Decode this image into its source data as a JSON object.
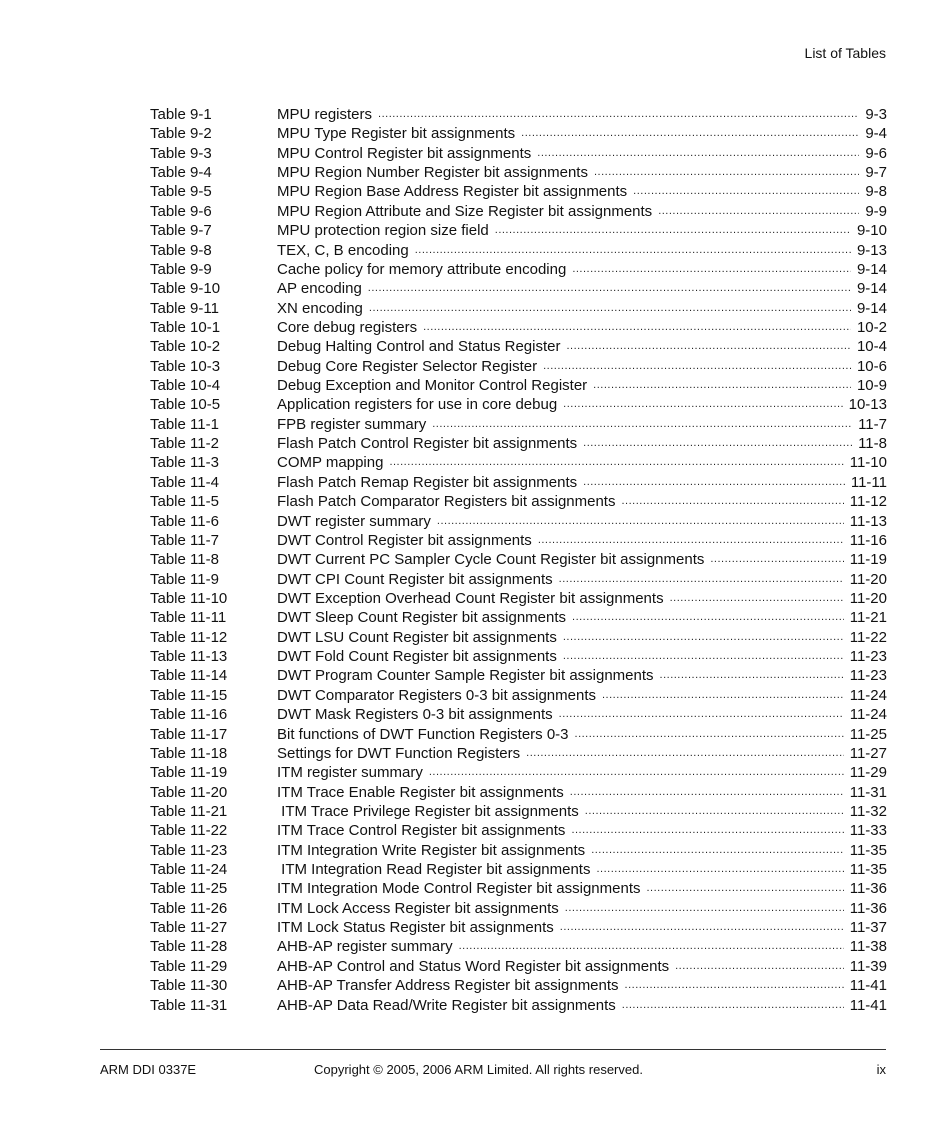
{
  "header": {
    "title": "List of Tables"
  },
  "entries": [
    [
      "Table 9-1",
      "MPU registers",
      "9-3"
    ],
    [
      "Table 9-2",
      "MPU Type Register bit assignments",
      "9-4"
    ],
    [
      "Table 9-3",
      "MPU Control Register bit assignments",
      "9-6"
    ],
    [
      "Table 9-4",
      "MPU Region Number Register bit assignments",
      "9-7"
    ],
    [
      "Table 9-5",
      "MPU Region Base Address Register bit assignments",
      "9-8"
    ],
    [
      "Table 9-6",
      "MPU Region Attribute and Size Register bit assignments",
      "9-9"
    ],
    [
      "Table 9-7",
      "MPU protection region size field",
      "9-10"
    ],
    [
      "Table 9-8",
      "TEX, C, B encoding",
      "9-13"
    ],
    [
      "Table 9-9",
      "Cache policy for memory attribute encoding",
      "9-14"
    ],
    [
      "Table 9-10",
      "AP encoding",
      "9-14"
    ],
    [
      "Table 9-11",
      "XN encoding",
      "9-14"
    ],
    [
      "Table 10-1",
      "Core debug registers",
      "10-2"
    ],
    [
      "Table 10-2",
      "Debug Halting Control and Status Register",
      "10-4"
    ],
    [
      "Table 10-3",
      "Debug Core Register Selector Register",
      "10-6"
    ],
    [
      "Table 10-4",
      "Debug Exception and Monitor Control Register",
      "10-9"
    ],
    [
      "Table 10-5",
      "Application registers for use in core debug",
      "10-13"
    ],
    [
      "Table 11-1",
      "FPB register summary",
      "11-7"
    ],
    [
      "Table 11-2",
      "Flash Patch Control Register bit assignments",
      "11-8"
    ],
    [
      "Table 11-3",
      "COMP mapping",
      "11-10"
    ],
    [
      "Table 11-4",
      "Flash Patch Remap Register bit assignments",
      "11-11"
    ],
    [
      "Table 11-5",
      "Flash Patch Comparator Registers bit assignments",
      "11-12"
    ],
    [
      "Table 11-6",
      "DWT register summary",
      "11-13"
    ],
    [
      "Table 11-7",
      "DWT Control Register bit assignments",
      "11-16"
    ],
    [
      "Table 11-8",
      "DWT Current PC Sampler Cycle Count Register bit assignments",
      "11-19"
    ],
    [
      "Table 11-9",
      "DWT CPI Count Register bit assignments",
      "11-20"
    ],
    [
      "Table 11-10",
      "DWT Exception Overhead Count Register bit assignments",
      "11-20"
    ],
    [
      "Table 11-11",
      "DWT Sleep Count Register bit assignments",
      "11-21"
    ],
    [
      "Table 11-12",
      "DWT LSU Count Register bit assignments",
      "11-22"
    ],
    [
      "Table 11-13",
      "DWT Fold Count Register bit assignments",
      "11-23"
    ],
    [
      "Table 11-14",
      "DWT Program Counter Sample Register bit assignments",
      "11-23"
    ],
    [
      "Table 11-15",
      "DWT Comparator Registers 0-3 bit assignments",
      "11-24"
    ],
    [
      "Table 11-16",
      "DWT Mask Registers 0-3 bit assignments",
      "11-24"
    ],
    [
      "Table 11-17",
      "Bit functions of DWT Function Registers 0-3",
      "11-25"
    ],
    [
      "Table 11-18",
      "Settings for DWT Function Registers",
      "11-27"
    ],
    [
      "Table 11-19",
      "ITM register summary",
      "11-29"
    ],
    [
      "Table 11-20",
      "ITM Trace Enable Register bit assignments",
      "11-31"
    ],
    [
      "Table 11-21",
      " ITM Trace Privilege Register bit assignments",
      "11-32"
    ],
    [
      "Table 11-22",
      "ITM Trace Control Register bit assignments",
      "11-33"
    ],
    [
      "Table 11-23",
      "ITM Integration Write Register bit assignments",
      "11-35"
    ],
    [
      "Table 11-24",
      " ITM Integration Read Register bit assignments",
      "11-35"
    ],
    [
      "Table 11-25",
      "ITM Integration Mode Control Register bit assignments",
      "11-36"
    ],
    [
      "Table 11-26",
      "ITM Lock Access Register bit assignments",
      "11-36"
    ],
    [
      "Table 11-27",
      "ITM Lock Status Register bit assignments",
      "11-37"
    ],
    [
      "Table 11-28",
      "AHB-AP register summary",
      "11-38"
    ],
    [
      "Table 11-29",
      "AHB-AP Control and Status Word Register bit assignments",
      "11-39"
    ],
    [
      "Table 11-30",
      "AHB-AP Transfer Address Register bit assignments",
      "11-41"
    ],
    [
      "Table 11-31",
      "AHB-AP Data Read/Write Register bit assignments",
      "11-41"
    ]
  ],
  "footer": {
    "doc_id": "ARM DDI 0337E",
    "copyright": "Copyright © 2005, 2006 ARM Limited. All rights reserved.",
    "page": "ix"
  }
}
